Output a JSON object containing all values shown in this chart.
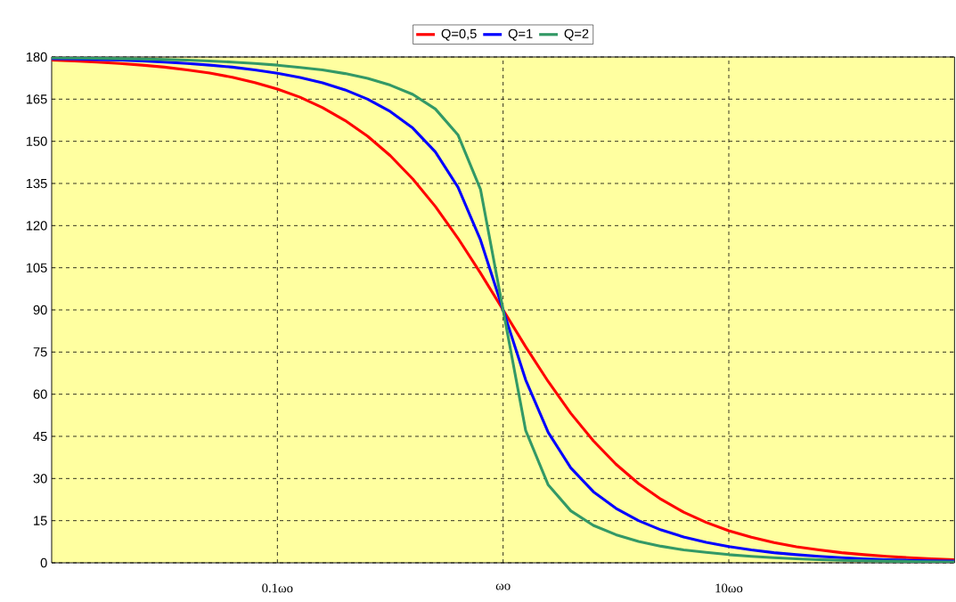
{
  "chart_data": {
    "type": "line",
    "x": [
      0.01,
      0.01259,
      0.01585,
      0.01995,
      0.02512,
      0.03162,
      0.03981,
      0.05012,
      0.0631,
      0.07943,
      0.1,
      0.1259,
      0.1585,
      0.1995,
      0.2512,
      0.3162,
      0.3981,
      0.5012,
      0.631,
      0.7943,
      1,
      1.259,
      1.585,
      1.995,
      2.512,
      3.162,
      3.981,
      5.012,
      6.31,
      7.943,
      10,
      12.59,
      15.85,
      19.95,
      25.12,
      31.62,
      39.81,
      50.12,
      63.1,
      79.43,
      100
    ],
    "series": [
      {
        "name": "Q=0,5",
        "color": "#ff0000",
        "values": [
          178.9,
          178.6,
          178.2,
          177.7,
          177.1,
          176.4,
          175.4,
          174.3,
          172.8,
          170.9,
          168.6,
          165.7,
          162.0,
          157.4,
          151.8,
          144.9,
          136.6,
          126.8,
          115.5,
          103.1,
          90,
          76.9,
          64.5,
          53.2,
          43.4,
          35.1,
          28.2,
          22.6,
          18.0,
          14.4,
          11.4,
          9.1,
          7.2,
          5.7,
          4.6,
          3.6,
          2.9,
          2.3,
          1.8,
          1.4,
          1.1
        ]
      },
      {
        "name": "Q=1",
        "color": "#0000ff",
        "values": [
          179.4,
          179.3,
          179.1,
          178.9,
          178.6,
          178.2,
          177.7,
          177.1,
          176.4,
          175.4,
          174.2,
          172.7,
          170.8,
          168.3,
          165.0,
          160.6,
          154.7,
          146.2,
          133.7,
          114.9,
          90,
          65.1,
          46.4,
          33.8,
          25.3,
          19.4,
          15.0,
          11.7,
          9.2,
          7.3,
          5.8,
          4.6,
          3.6,
          2.9,
          2.3,
          1.8,
          1.4,
          1.1,
          0.9,
          0.7,
          0.6
        ]
      },
      {
        "name": "Q=2",
        "color": "#339966",
        "values": [
          179.7,
          179.6,
          179.5,
          179.4,
          179.3,
          179.1,
          178.9,
          178.6,
          178.2,
          177.7,
          177.1,
          176.3,
          175.4,
          174.1,
          172.4,
          170.0,
          166.7,
          161.5,
          152.3,
          132.9,
          90,
          47.1,
          27.7,
          18.5,
          13.3,
          10.0,
          7.6,
          5.9,
          4.6,
          3.7,
          2.9,
          2.3,
          1.8,
          1.4,
          1.1,
          0.9,
          0.7,
          0.6,
          0.5,
          0.4,
          0.3
        ]
      }
    ],
    "log": "x",
    "xlim": [
      0.01,
      100
    ],
    "ylim": [
      0,
      180
    ],
    "xticks": [
      {
        "value": 0.1,
        "label": "0.1ωo"
      },
      {
        "value": 1,
        "label": "ωo"
      },
      {
        "value": 10,
        "label": "10ωo"
      }
    ],
    "yticks": [
      0,
      15,
      30,
      45,
      60,
      75,
      90,
      105,
      120,
      135,
      150,
      165,
      180
    ],
    "grid": true,
    "legend": "top",
    "marker": "none",
    "line_style": "solid"
  }
}
